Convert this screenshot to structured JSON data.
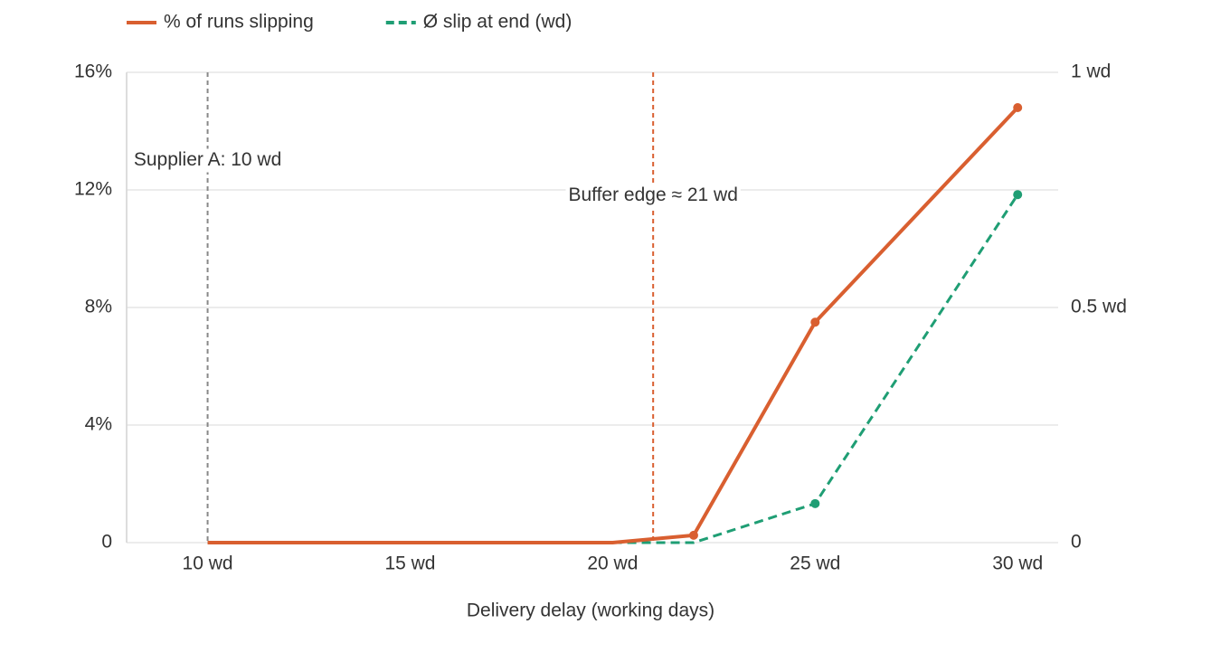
{
  "chart_data": {
    "type": "line",
    "x_label": "Delivery delay (working days)",
    "x": [
      10,
      15,
      20,
      22,
      25,
      30
    ],
    "xlim": [
      8,
      31
    ],
    "xticks": [
      {
        "value": 10,
        "label": "10 wd"
      },
      {
        "value": 15,
        "label": "15 wd"
      },
      {
        "value": 20,
        "label": "20 wd"
      },
      {
        "value": 25,
        "label": "25 wd"
      },
      {
        "value": 30,
        "label": "30 wd"
      }
    ],
    "ylim": [
      0,
      16
    ],
    "yticks": [
      0,
      {
        "value": 4,
        "label": "4%"
      },
      {
        "value": 8,
        "label": "8%"
      },
      {
        "value": 12,
        "label": "12%"
      },
      {
        "value": 16,
        "label": "16%"
      }
    ],
    "y2lim": [
      0,
      1
    ],
    "y2ticks": [
      0,
      {
        "value": 0.5,
        "label": "0.5 wd"
      },
      {
        "value": 1,
        "label": "1 wd"
      }
    ],
    "grid": true,
    "legend": "top-left",
    "series": [
      {
        "name": "% of runs slipping",
        "color": "#d95f30",
        "style": "solid",
        "values": [
          0,
          0,
          0,
          0.25,
          7.5,
          14.8
        ]
      },
      {
        "name": "Ø slip at end (wd)",
        "color": "#1f9e74",
        "style": "dashed",
        "axis": "y2",
        "values": [
          0,
          0,
          0,
          0,
          0.083,
          0.74
        ]
      }
    ],
    "annotations": [
      {
        "x": 10,
        "label": "Supplier A: 10 wd",
        "color": "#888888",
        "label_y": 13
      },
      {
        "x": 21,
        "label": "Buffer edge ≈ 21 wd",
        "color": "#d95f30",
        "label_y": 11.8
      }
    ]
  }
}
